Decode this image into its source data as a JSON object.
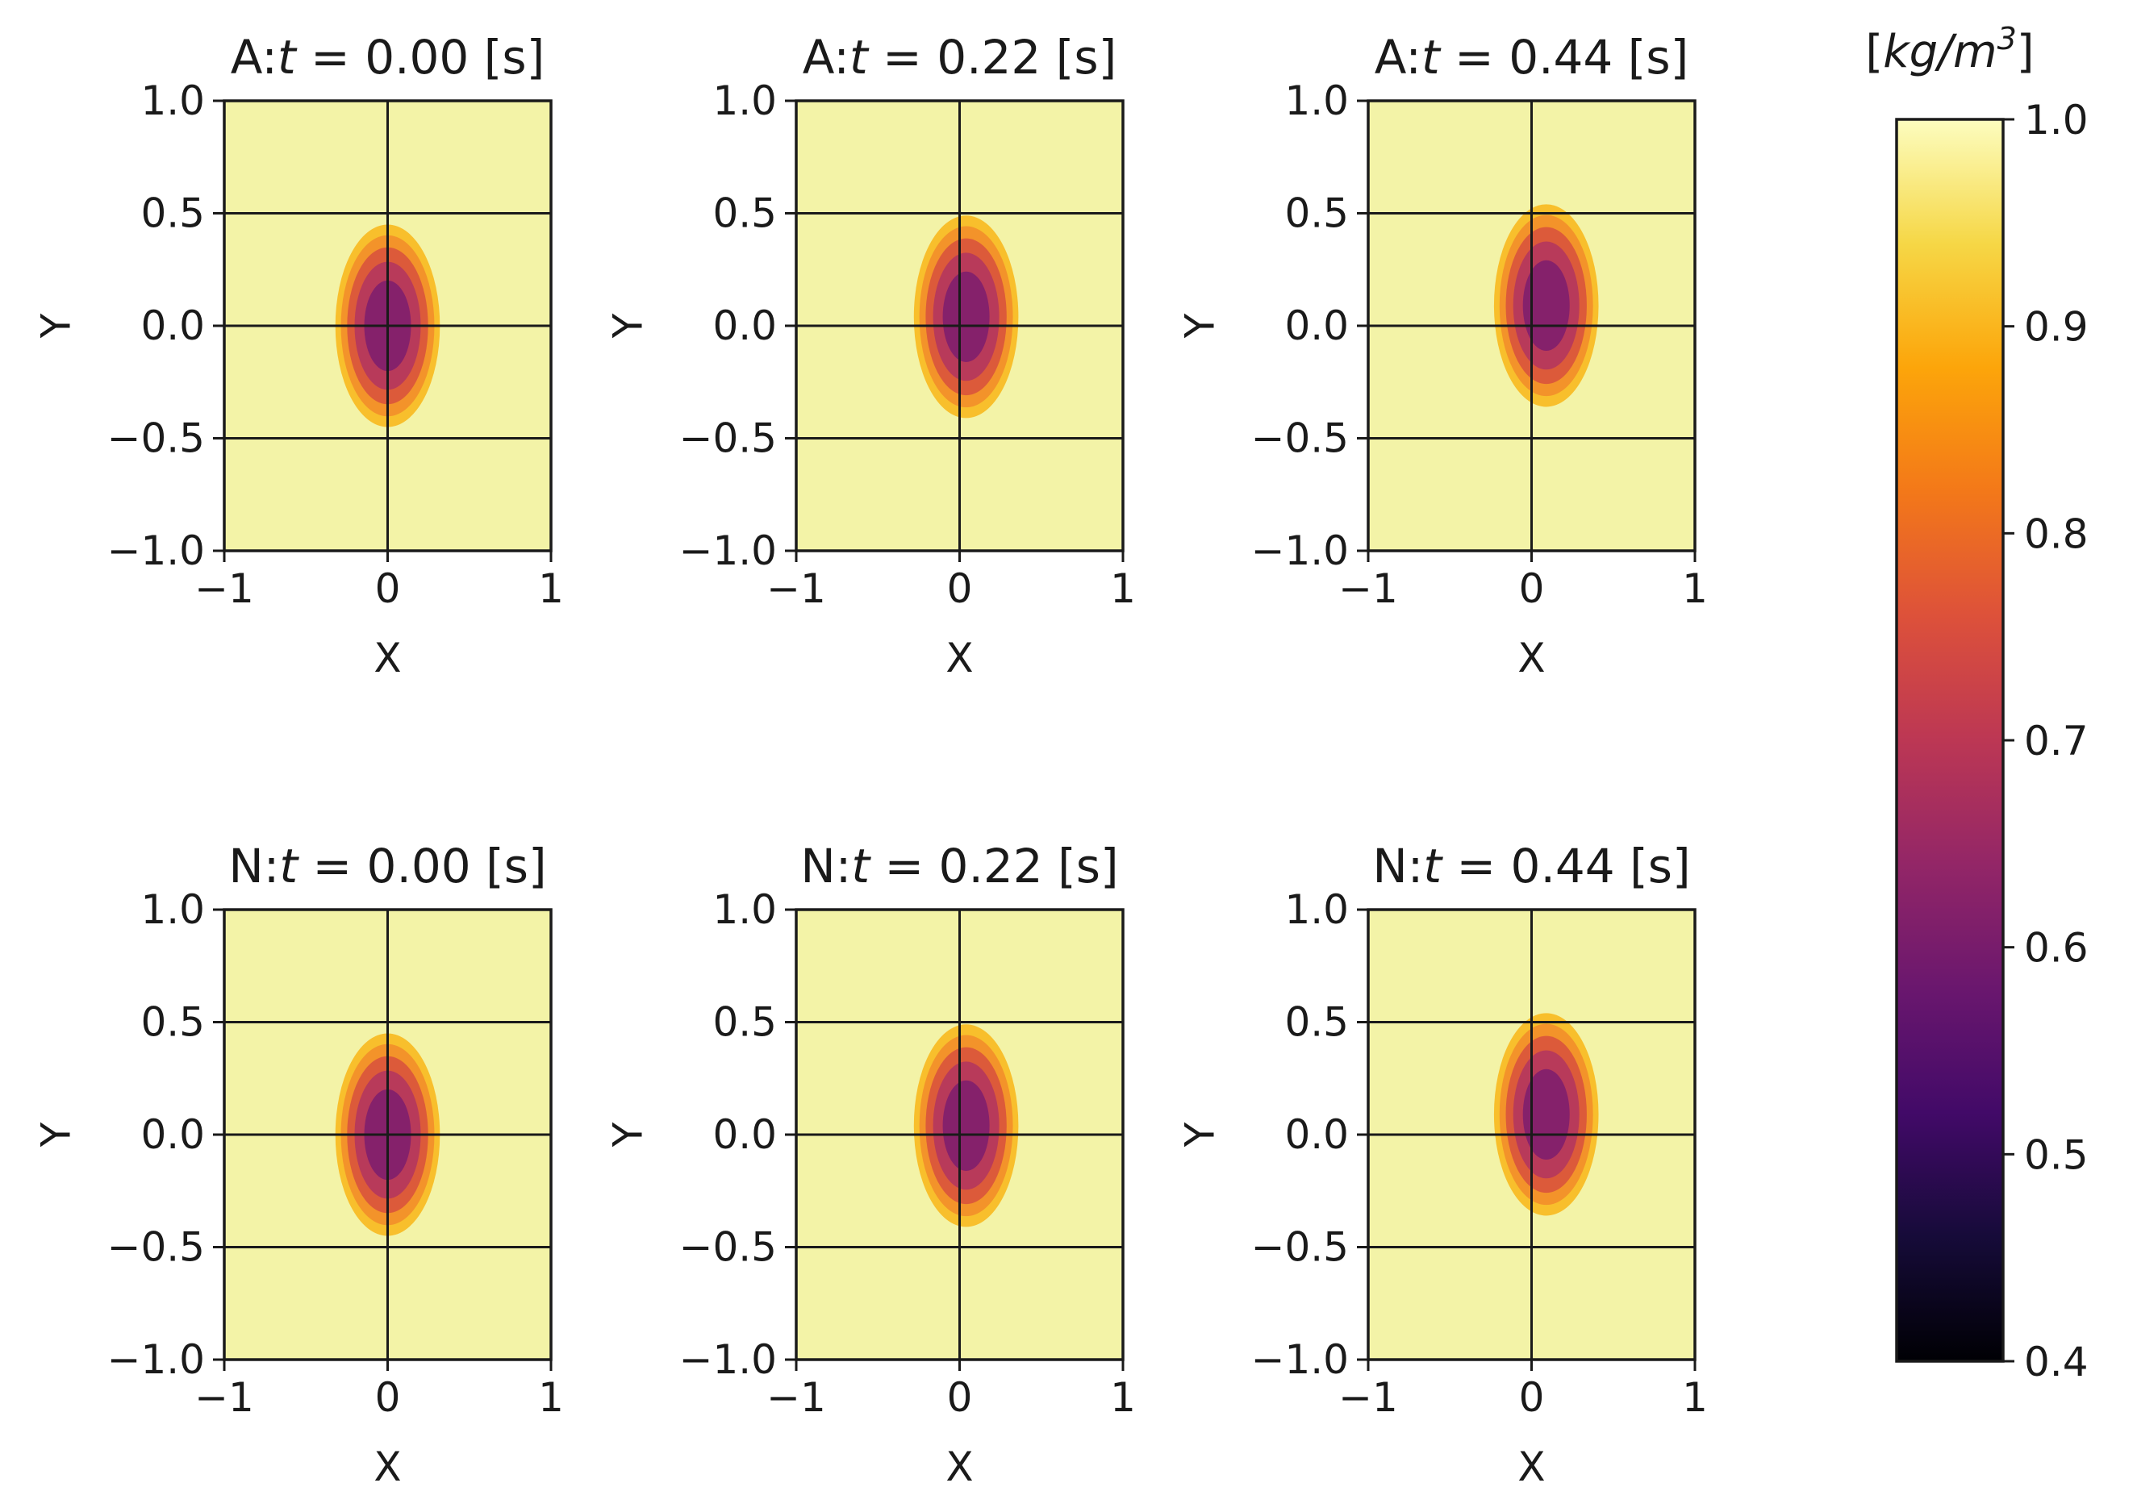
{
  "chart_data": {
    "type": "heatmap",
    "colormap": "inferno",
    "colorbar": {
      "label": "[kg/m³]",
      "label_parts": [
        "[",
        "kg/m",
        "3",
        "]"
      ],
      "range": [
        0.4,
        1.0
      ],
      "ticks": [
        0.4,
        0.5,
        0.6,
        0.7,
        0.8,
        0.9,
        1.0
      ],
      "tick_labels": [
        "0.4",
        "0.5",
        "0.6",
        "0.7",
        "0.8",
        "0.9",
        "1.0"
      ]
    },
    "panels": [
      {
        "row": 0,
        "col": 0,
        "prefix": "A:",
        "var": "t",
        "eq": " = ",
        "value": "0.00",
        "unit": " [s]",
        "xlabel": "X",
        "ylabel": "Y",
        "xlim": [
          -1,
          1
        ],
        "ylim": [
          -1,
          1
        ],
        "vortex": {
          "center": [
            0.0,
            0.0
          ],
          "min_value": 0.45,
          "radius_x": 0.32,
          "radius_y": 0.45
        }
      },
      {
        "row": 0,
        "col": 1,
        "prefix": "A:",
        "var": "t",
        "eq": " = ",
        "value": "0.22",
        "unit": " [s]",
        "xlabel": "X",
        "ylabel": "Y",
        "xlim": [
          -1,
          1
        ],
        "ylim": [
          -1,
          1
        ],
        "vortex": {
          "center": [
            0.04,
            0.04
          ],
          "min_value": 0.45,
          "radius_x": 0.32,
          "radius_y": 0.45
        }
      },
      {
        "row": 0,
        "col": 2,
        "prefix": "A:",
        "var": "t",
        "eq": " = ",
        "value": "0.44",
        "unit": " [s]",
        "xlabel": "X",
        "ylabel": "Y",
        "xlim": [
          -1,
          1
        ],
        "ylim": [
          -1,
          1
        ],
        "vortex": {
          "center": [
            0.09,
            0.09
          ],
          "min_value": 0.45,
          "radius_x": 0.32,
          "radius_y": 0.45
        }
      },
      {
        "row": 1,
        "col": 0,
        "prefix": "N:",
        "var": "t",
        "eq": " = ",
        "value": "0.00",
        "unit": " [s]",
        "xlabel": "X",
        "ylabel": "Y",
        "xlim": [
          -1,
          1
        ],
        "ylim": [
          -1,
          1
        ],
        "vortex": {
          "center": [
            0.0,
            0.0
          ],
          "min_value": 0.45,
          "radius_x": 0.32,
          "radius_y": 0.45
        }
      },
      {
        "row": 1,
        "col": 1,
        "prefix": "N:",
        "var": "t",
        "eq": " = ",
        "value": "0.22",
        "unit": " [s]",
        "xlabel": "X",
        "ylabel": "Y",
        "xlim": [
          -1,
          1
        ],
        "ylim": [
          -1,
          1
        ],
        "vortex": {
          "center": [
            0.04,
            0.04
          ],
          "min_value": 0.45,
          "radius_x": 0.32,
          "radius_y": 0.45
        }
      },
      {
        "row": 1,
        "col": 2,
        "prefix": "N:",
        "var": "t",
        "eq": " = ",
        "value": "0.44",
        "unit": " [s]",
        "xlabel": "X",
        "ylabel": "Y",
        "xlim": [
          -1,
          1
        ],
        "ylim": [
          -1,
          1
        ],
        "vortex": {
          "center": [
            0.09,
            0.09
          ],
          "min_value": 0.45,
          "radius_x": 0.32,
          "radius_y": 0.45
        }
      }
    ],
    "xticks": [
      -1,
      0,
      1
    ],
    "xtick_labels": [
      "−1",
      "0",
      "1"
    ],
    "yticks": [
      -1.0,
      -0.5,
      0.0,
      0.5,
      1.0
    ],
    "ytick_labels": [
      "−1.0",
      "−0.5",
      "0.0",
      "0.5",
      "1.0"
    ],
    "contour_levels": [
      0.45,
      0.55,
      0.65,
      0.75,
      0.85,
      0.95
    ],
    "grid": true,
    "colors": {
      "background_field": "#f3f3a7",
      "contour_fills": [
        "#f8bf2c",
        "#f3932a",
        "#dc5a3a",
        "#b83a5a",
        "#85216b",
        "#3f1461"
      ],
      "colorbar_stops": [
        [
          0.0,
          "#000004"
        ],
        [
          0.1,
          "#160b39"
        ],
        [
          0.2,
          "#420a68"
        ],
        [
          0.3,
          "#6a176e"
        ],
        [
          0.4,
          "#932667"
        ],
        [
          0.5,
          "#bc3754"
        ],
        [
          0.6,
          "#dd513a"
        ],
        [
          0.7,
          "#f37819"
        ],
        [
          0.8,
          "#fca50a"
        ],
        [
          0.9,
          "#f6d746"
        ],
        [
          1.0,
          "#fcfdbf"
        ]
      ]
    }
  }
}
